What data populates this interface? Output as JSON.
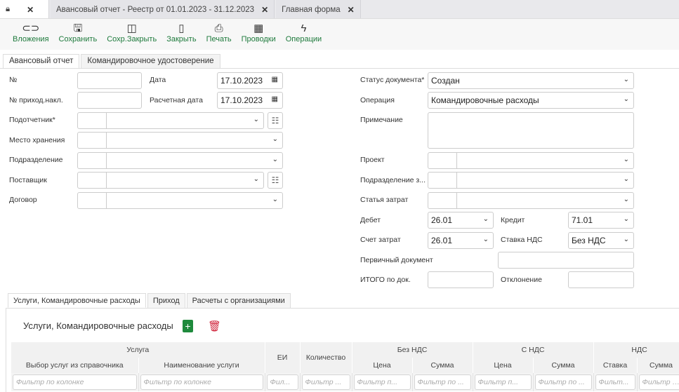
{
  "window_tabs": [
    {
      "label": ""
    },
    {
      "label": "Авансовый отчет - Реестр от 01.01.2023 - 31.12.2023"
    },
    {
      "label": "Главная форма"
    }
  ],
  "toolbar": [
    {
      "icon": "paperclip-icon",
      "label": "Вложения",
      "glyph": "⊂⊃"
    },
    {
      "icon": "save-icon",
      "label": "Сохранить",
      "glyph": "🖫"
    },
    {
      "icon": "save-close-icon",
      "label": "Сохр.Закрыть",
      "glyph": "◫"
    },
    {
      "icon": "close-doc-icon",
      "label": "Закрыть",
      "glyph": "▯"
    },
    {
      "icon": "print-icon",
      "label": "Печать",
      "glyph": "⎙"
    },
    {
      "icon": "calculator-icon",
      "label": "Проводки",
      "glyph": "▦"
    },
    {
      "icon": "lightning-icon",
      "label": "Операции",
      "glyph": "ϟ"
    }
  ],
  "form_tabs": [
    "Авансовый отчет",
    "Командировочное удостоверение"
  ],
  "left": {
    "number_label": "№",
    "number": "",
    "date_label": "Дата",
    "date": "17.10.2023",
    "invoice_label": "№ приход.накл.",
    "invoice": "",
    "calc_date_label": "Расчетная дата",
    "calc_date": "17.10.2023",
    "accountable_label": "Подотчетник*",
    "storage_label": "Место хранения",
    "division_label": "Подразделение",
    "supplier_label": "Поставщик",
    "contract_label": "Договор"
  },
  "right": {
    "status_label": "Статус документа*",
    "status": "Создан",
    "operation_label": "Операция",
    "operation": "Командировочные расходы",
    "note_label": "Примечание",
    "note": "",
    "project_label": "Проект",
    "division_label": "Подразделение з...",
    "cost_item_label": "Статья затрат",
    "debit_label": "Дебет",
    "debit": "26.01",
    "credit_label": "Кредит",
    "credit": "71.01",
    "cost_account_label": "Счет затрат",
    "cost_account": "26.01",
    "vat_rate_label": "Ставка НДС",
    "vat_rate": "Без НДС",
    "primary_doc_label": "Первичный документ",
    "primary_doc": "",
    "total_label": "ИТОГО по док.",
    "total": "",
    "deviation_label": "Отклонение",
    "deviation": ""
  },
  "bottom_tabs": [
    "Услуги, Командировочные расходы",
    "Приход",
    "Расчеты с организациями"
  ],
  "section": {
    "title": "Услуги, Командировочные расходы",
    "add_color": "#1e8a3c",
    "delete_color": "#d0243c"
  },
  "table": {
    "groups": [
      "Услуга",
      "Без НДС",
      "С НДС",
      "НДС"
    ],
    "columns": [
      "Выбор услуг из справочника",
      "Наименование услуги",
      "ЕИ",
      "Количество",
      "Цена",
      "Сумма",
      "Цена",
      "Сумма",
      "Ставка",
      "Сумма"
    ],
    "filters": [
      "Фильтр по колонке",
      "Фильтр по колонке",
      "Фил...",
      "Фильтр ...",
      "Фильтр п...",
      "Фильтр по ...",
      "Фильтр п...",
      "Фильтр по ...",
      "Фильт...",
      "Фильтр по ..."
    ]
  }
}
